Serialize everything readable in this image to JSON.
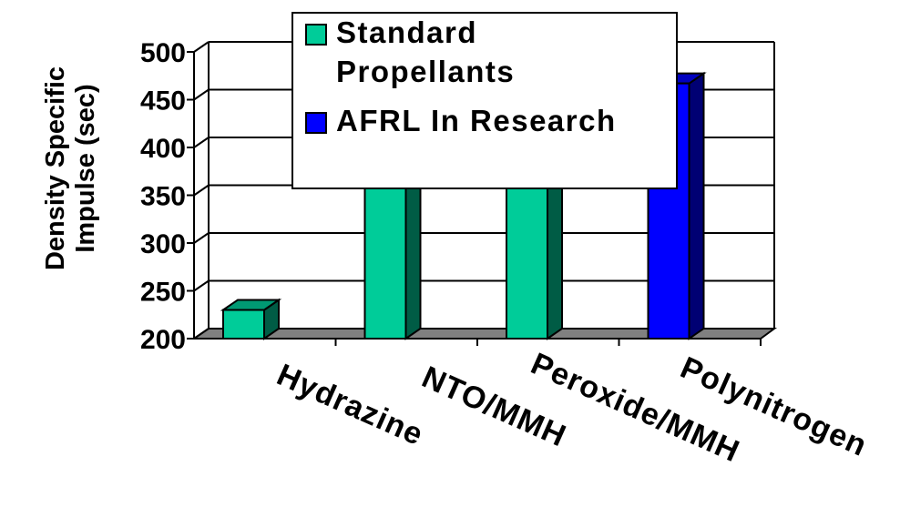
{
  "chart_data": {
    "type": "bar",
    "ylabel": "Density Specific Impulse (sec)",
    "ylabel_lines": [
      "Density Specific",
      "Impulse (sec)"
    ],
    "categories": [
      "Hydrazine",
      "NTO/MMH",
      "Peroxide/MMH",
      "Polynitrogen"
    ],
    "values": [
      230,
      375,
      375,
      467
    ],
    "series": [
      {
        "name": "Standard Propellants",
        "name_lines": [
          "Standard",
          "Propellants"
        ],
        "color": "#00CC99"
      },
      {
        "name": "AFRL In Research",
        "name_lines": [
          "AFRL In Research"
        ],
        "color": "#0000FF"
      }
    ],
    "bar_series": [
      0,
      0,
      0,
      1
    ],
    "ylim": [
      200,
      500
    ],
    "yticks": [
      200,
      250,
      300,
      350,
      400,
      450,
      500
    ],
    "grid": true,
    "legend_position": "top-center",
    "style": "3d"
  }
}
